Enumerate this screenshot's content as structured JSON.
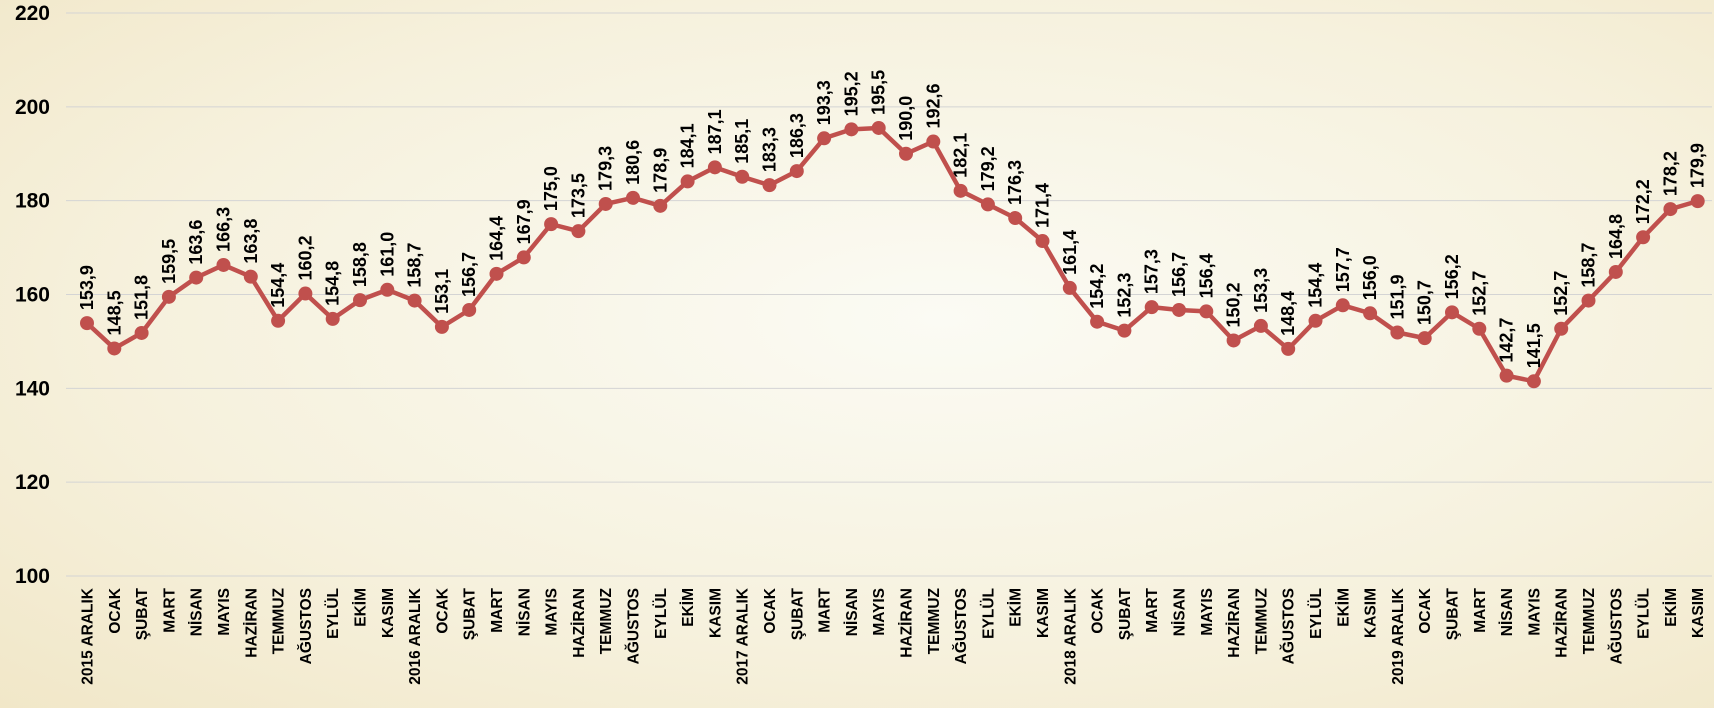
{
  "chart_data": {
    "type": "line",
    "title": "",
    "xlabel": "",
    "ylabel": "",
    "ylim": [
      100,
      220
    ],
    "yticks": [
      100,
      120,
      140,
      160,
      180,
      200,
      220
    ],
    "grid": true,
    "colors": {
      "line": "#c0504d",
      "marker": "#c0504d",
      "grid": "#d4d4d4"
    },
    "categories": [
      "2015 ARALIK",
      "OCAK",
      "ŞUBAT",
      "MART",
      "NİSAN",
      "MAYIS",
      "HAZİRAN",
      "TEMMUZ",
      "AĞUSTOS",
      "EYLÜL",
      "EKİM",
      "KASIM",
      "2016 ARALIK",
      "OCAK",
      "ŞUBAT",
      "MART",
      "NİSAN",
      "MAYIS",
      "HAZİRAN",
      "TEMMUZ",
      "AĞUSTOS",
      "EYLÜL",
      "EKİM",
      "KASIM",
      "2017 ARALIK",
      "OCAK",
      "ŞUBAT",
      "MART",
      "NİSAN",
      "MAYIS",
      "HAZİRAN",
      "TEMMUZ",
      "AĞUSTOS",
      "EYLÜL",
      "EKİM",
      "KASIM",
      "2018 ARALIK",
      "OCAK",
      "ŞUBAT",
      "MART",
      "NİSAN",
      "MAYIS",
      "HAZİRAN",
      "TEMMUZ",
      "AĞUSTOS",
      "EYLÜL",
      "EKİM",
      "KASIM",
      "2019 ARALIK",
      "OCAK",
      "ŞUBAT",
      "MART",
      "NİSAN",
      "MAYIS",
      "HAZİRAN",
      "TEMMUZ",
      "AĞUSTOS",
      "EYLÜL",
      "EKİM",
      "KASIM"
    ],
    "values": [
      153.9,
      148.5,
      151.8,
      159.5,
      163.6,
      166.3,
      163.8,
      154.4,
      160.2,
      154.8,
      158.8,
      161.0,
      158.7,
      153.1,
      156.7,
      164.4,
      167.9,
      175.0,
      173.5,
      179.3,
      180.6,
      178.9,
      184.1,
      187.1,
      185.1,
      183.3,
      186.3,
      193.3,
      195.2,
      195.5,
      190.0,
      192.6,
      182.1,
      179.2,
      176.3,
      171.4,
      161.4,
      154.2,
      152.3,
      157.3,
      156.7,
      156.4,
      150.2,
      153.3,
      148.4,
      154.4,
      157.7,
      156.0,
      151.9,
      150.7,
      156.2,
      152.7,
      142.7,
      141.5,
      152.7,
      158.7,
      164.8,
      172.2,
      178.2,
      179.9
    ],
    "labels": [
      "153,9",
      "148,5",
      "151,8",
      "159,5",
      "163,6",
      "166,3",
      "163,8",
      "154,4",
      "160,2",
      "154,8",
      "158,8",
      "161,0",
      "158,7",
      "153,1",
      "156,7",
      "164,4",
      "167,9",
      "175,0",
      "173,5",
      "179,3",
      "180,6",
      "178,9",
      "184,1",
      "187,1",
      "185,1",
      "183,3",
      "186,3",
      "193,3",
      "195,2",
      "195,5",
      "190,0",
      "192,6",
      "182,1",
      "179,2",
      "176,3",
      "171,4",
      "161,4",
      "154,2",
      "152,3",
      "157,3",
      "156,7",
      "156,4",
      "150,2",
      "153,3",
      "148,4",
      "154,4",
      "157,7",
      "156,0",
      "151,9",
      "150,7",
      "156,2",
      "152,7",
      "142,7",
      "141,5",
      "152,7",
      "158,7",
      "164,8",
      "172,2",
      "178,2",
      "179,9"
    ]
  }
}
